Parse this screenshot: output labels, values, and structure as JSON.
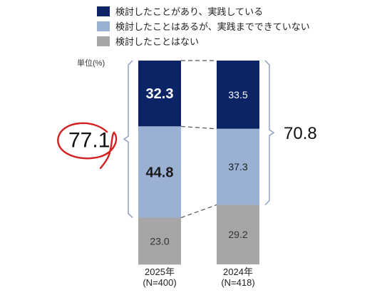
{
  "chart_data": {
    "type": "bar",
    "stacked": true,
    "categories": [
      "2025年\n(N=400)",
      "2024年\n(N=418)"
    ],
    "series": [
      {
        "name": "検討したことがあり、実践している",
        "values": [
          32.3,
          33.5
        ],
        "color": "#0b2466"
      },
      {
        "name": "検討したことはあるが、実践までできていない",
        "values": [
          44.8,
          37.3
        ],
        "color": "#9bb1d4"
      },
      {
        "name": "検討したことはない",
        "values": [
          23.0,
          29.2
        ],
        "color": "#a6a6a6"
      }
    ],
    "value_labels": [
      [
        "32.3",
        "44.8",
        "23.0"
      ],
      [
        "33.5",
        "37.3",
        "29.2"
      ]
    ],
    "unit_label": "単位(%)",
    "bracket_totals": [
      "77.1",
      "70.8"
    ],
    "ylim": [
      0,
      100
    ],
    "grid": false,
    "legend_position": "top"
  }
}
